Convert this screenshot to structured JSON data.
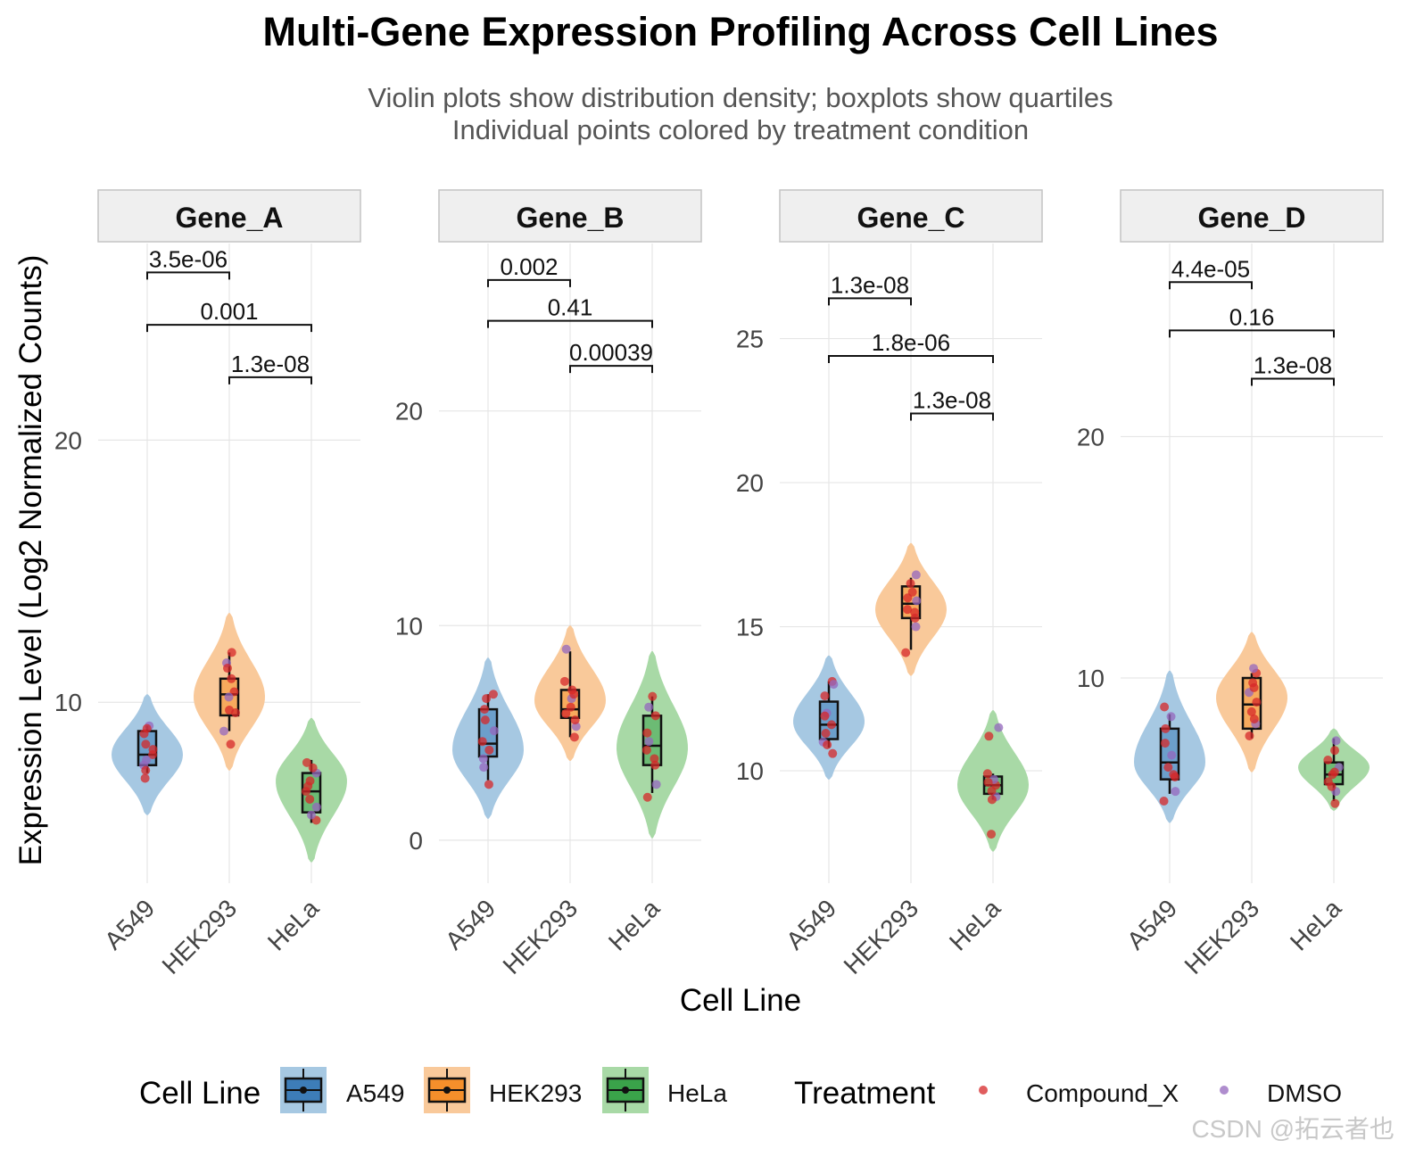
{
  "title": "Multi-Gene Expression Profiling Across Cell Lines",
  "subtitle_lines": [
    "Violin plots show distribution density; boxplots show quartiles",
    "Individual points colored by treatment condition"
  ],
  "xlabel": "Cell Line",
  "ylabel": "Expression Level (Log2 Normalized Counts)",
  "legend": {
    "cell_line_title": "Cell Line",
    "cell_lines": [
      "A549",
      "HEK293",
      "HeLa"
    ],
    "treatment_title": "Treatment",
    "treatments": [
      "Compound_X",
      "DMSO"
    ]
  },
  "colors": {
    "A549": "#3D7DB8",
    "HEK293": "#F58F2B",
    "HeLa": "#3AA34A",
    "A549_violin": "#A6C8E2",
    "HEK293_violin": "#F9C99A",
    "HeLa_violin": "#A8D9A6",
    "Compound_X": "#D62728",
    "DMSO": "#9467BD",
    "strip_bg": "#EFEFEF",
    "grid": "#E6E6E6"
  },
  "watermark": "CSDN @拓云者也",
  "chart_data": [
    {
      "type": "violin",
      "facet": "Gene_A",
      "categories": [
        "A549",
        "HEK293",
        "HeLa"
      ],
      "ylim": [
        3.1,
        27.5
      ],
      "yticks": [
        10,
        20
      ],
      "box": {
        "A549": {
          "min": 7.3,
          "q1": 7.6,
          "median": 8.0,
          "q3": 8.9,
          "max": 9.1
        },
        "HEK293": {
          "min": 8.9,
          "q1": 9.5,
          "median": 10.3,
          "q3": 10.9,
          "max": 11.9
        },
        "HeLa": {
          "min": 5.4,
          "q1": 5.8,
          "median": 6.6,
          "q3": 7.3,
          "max": 7.8
        }
      },
      "violin": {
        "A549": {
          "min": 5.7,
          "mode": 8.0,
          "max": 10.3
        },
        "HEK293": {
          "min": 7.4,
          "mode": 10.2,
          "max": 13.4
        },
        "HeLa": {
          "min": 3.9,
          "mode": 7.0,
          "max": 9.4
        }
      },
      "points": {
        "A549": [
          7.1,
          7.6,
          8.0,
          8.4,
          9.1,
          8.8,
          8.2,
          7.8,
          7.4,
          9.0
        ],
        "HEK293": [
          8.4,
          8.9,
          9.7,
          10.4,
          11.5,
          11.9,
          10.9,
          10.2,
          9.6,
          11.3
        ],
        "HeLa": [
          5.5,
          6.0,
          6.6,
          7.0,
          7.3,
          7.7,
          6.3,
          5.7,
          7.5,
          6.8
        ]
      },
      "comparisons": [
        {
          "pair": [
            "A549",
            "HEK293"
          ],
          "y": 26.4,
          "label": "3.5e-06"
        },
        {
          "pair": [
            "A549",
            "HeLa"
          ],
          "y": 24.4,
          "label": "0.001"
        },
        {
          "pair": [
            "HEK293",
            "HeLa"
          ],
          "y": 22.4,
          "label": "1.3e-08"
        }
      ]
    },
    {
      "type": "violin",
      "facet": "Gene_B",
      "categories": [
        "A549",
        "HEK293",
        "HeLa"
      ],
      "ylim": [
        -2.0,
        27.8
      ],
      "yticks": [
        0,
        10,
        20
      ],
      "box": {
        "A549": {
          "min": 2.8,
          "q1": 3.9,
          "median": 4.5,
          "q3": 6.1,
          "max": 6.8
        },
        "HEK293": {
          "min": 4.8,
          "q1": 5.7,
          "median": 6.1,
          "q3": 7.0,
          "max": 8.8
        },
        "HeLa": {
          "min": 2.2,
          "q1": 3.5,
          "median": 4.4,
          "q3": 5.8,
          "max": 6.7
        }
      },
      "violin": {
        "A549": {
          "min": 1.0,
          "mode": 4.2,
          "max": 8.5
        },
        "HEK293": {
          "min": 3.7,
          "mode": 6.5,
          "max": 10.0
        },
        "HeLa": {
          "min": 0.1,
          "mode": 4.3,
          "max": 8.8
        }
      },
      "points": {
        "A549": [
          2.6,
          3.8,
          4.2,
          4.6,
          5.1,
          6.1,
          6.6,
          3.4,
          5.6,
          6.8
        ],
        "HEK293": [
          4.8,
          5.3,
          5.9,
          6.2,
          6.6,
          7.0,
          7.4,
          8.9,
          5.6,
          6.8
        ],
        "HeLa": [
          2.0,
          2.6,
          3.5,
          4.2,
          4.6,
          5.0,
          5.8,
          6.2,
          6.7,
          3.8
        ]
      },
      "comparisons": [
        {
          "pair": [
            "A549",
            "HEK293"
          ],
          "y": 26.1,
          "label": "0.002"
        },
        {
          "pair": [
            "A549",
            "HeLa"
          ],
          "y": 24.2,
          "label": "0.41"
        },
        {
          "pair": [
            "HEK293",
            "HeLa"
          ],
          "y": 22.1,
          "label": "0.00039"
        }
      ]
    },
    {
      "type": "violin",
      "facet": "Gene_C",
      "categories": [
        "A549",
        "HEK293",
        "HeLa"
      ],
      "ylim": [
        6.1,
        28.3
      ],
      "yticks": [
        10,
        15,
        20,
        25
      ],
      "box": {
        "A549": {
          "min": 10.8,
          "q1": 11.1,
          "median": 11.6,
          "q3": 12.4,
          "max": 13.1
        },
        "HEK293": {
          "min": 14.2,
          "q1": 15.3,
          "median": 15.8,
          "q3": 16.4,
          "max": 16.7
        },
        "HeLa": {
          "min": 9.0,
          "q1": 9.2,
          "median": 9.5,
          "q3": 9.8,
          "max": 9.9
        }
      },
      "violin": {
        "A549": {
          "min": 9.7,
          "mode": 11.7,
          "max": 14.0
        },
        "HEK293": {
          "min": 13.3,
          "mode": 15.6,
          "max": 17.9
        },
        "HeLa": {
          "min": 7.2,
          "mode": 9.5,
          "max": 12.1
        }
      },
      "points": {
        "A549": [
          10.6,
          11.0,
          11.3,
          11.6,
          12.0,
          12.6,
          13.1,
          13.0,
          11.9,
          10.9
        ],
        "HEK293": [
          14.1,
          15.0,
          15.3,
          15.6,
          15.9,
          16.2,
          16.5,
          16.8,
          15.5,
          16.0
        ],
        "HeLa": [
          7.8,
          9.1,
          9.3,
          9.5,
          9.7,
          9.9,
          11.2,
          11.5,
          9.0,
          9.6
        ]
      },
      "comparisons": [
        {
          "pair": [
            "A549",
            "HEK293"
          ],
          "y": 26.4,
          "label": "1.3e-08"
        },
        {
          "pair": [
            "A549",
            "HeLa"
          ],
          "y": 24.4,
          "label": "1.8e-06"
        },
        {
          "pair": [
            "HEK293",
            "HeLa"
          ],
          "y": 22.4,
          "label": "1.3e-08"
        }
      ]
    },
    {
      "type": "violin",
      "facet": "Gene_D",
      "categories": [
        "A549",
        "HEK293",
        "HeLa"
      ],
      "ylim": [
        1.5,
        28.0
      ],
      "yticks": [
        10,
        20
      ],
      "box": {
        "A549": {
          "min": 5.2,
          "q1": 5.8,
          "median": 6.5,
          "q3": 7.9,
          "max": 8.5
        },
        "HEK293": {
          "min": 7.5,
          "q1": 7.9,
          "median": 8.9,
          "q3": 10.0,
          "max": 10.2
        },
        "HeLa": {
          "min": 4.9,
          "q1": 5.6,
          "median": 6.0,
          "q3": 6.5,
          "max": 7.5
        }
      },
      "violin": {
        "A549": {
          "min": 4.0,
          "mode": 6.5,
          "max": 10.3
        },
        "HEK293": {
          "min": 6.1,
          "mode": 9.2,
          "max": 11.9
        },
        "HeLa": {
          "min": 4.5,
          "mode": 6.3,
          "max": 7.9
        }
      },
      "points": {
        "A549": [
          4.9,
          5.3,
          5.9,
          6.3,
          6.8,
          7.3,
          7.9,
          8.4,
          8.8,
          6.0
        ],
        "HEK293": [
          7.6,
          8.1,
          8.6,
          9.0,
          9.4,
          9.8,
          10.2,
          10.4,
          8.3,
          9.6
        ],
        "HeLa": [
          4.8,
          5.3,
          5.7,
          6.0,
          6.3,
          6.6,
          7.0,
          7.4,
          5.5,
          6.1
        ]
      },
      "comparisons": [
        {
          "pair": [
            "A549",
            "HEK293"
          ],
          "y": 26.4,
          "label": "4.4e-05"
        },
        {
          "pair": [
            "A549",
            "HeLa"
          ],
          "y": 24.4,
          "label": "0.16"
        },
        {
          "pair": [
            "HEK293",
            "HeLa"
          ],
          "y": 22.4,
          "label": "1.3e-08"
        }
      ]
    }
  ]
}
